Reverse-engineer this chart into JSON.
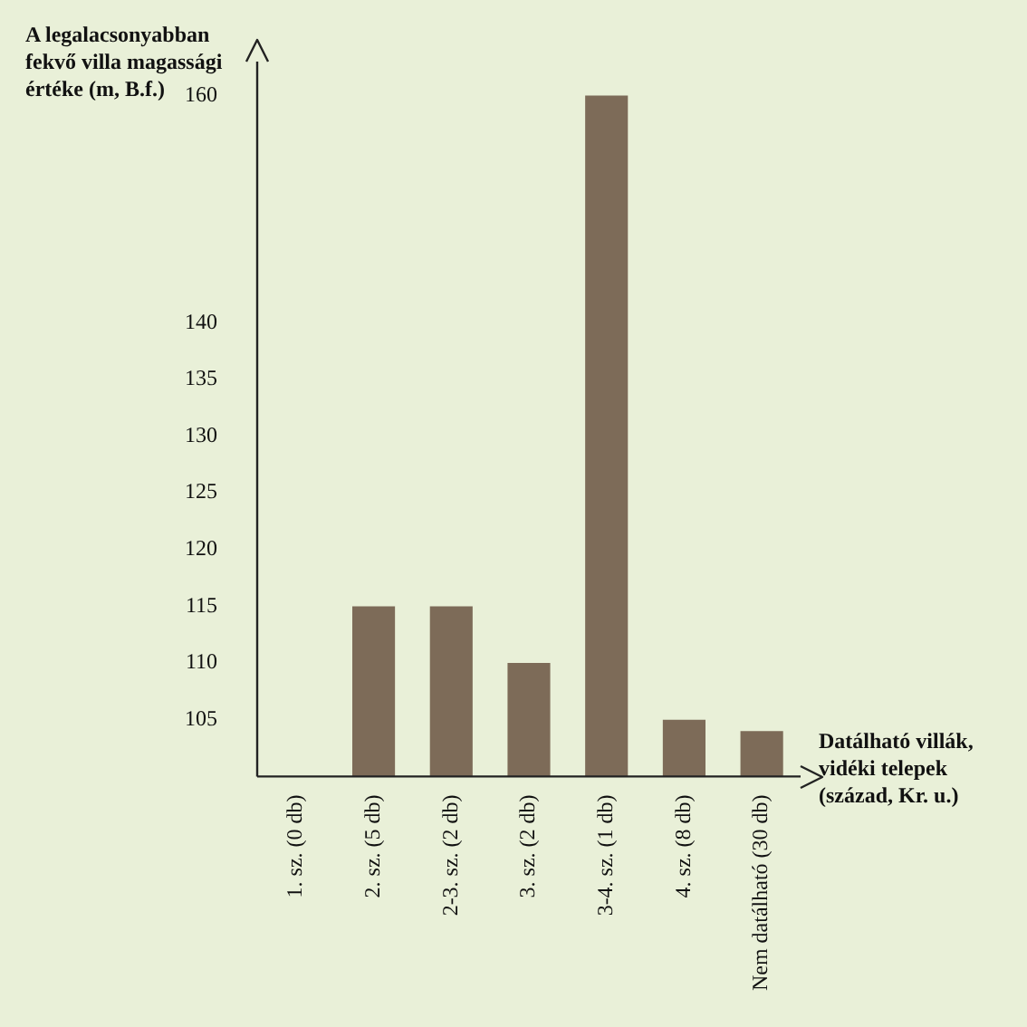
{
  "chart_data": {
    "type": "bar",
    "ylabel": "A legalacsonyabban fekvő villa magassági értéke (m, B.f.)",
    "xlabel": "Datálható villák, vidéki telepek (század, Kr. u.)",
    "categories": [
      "1. sz. (0 db)",
      "2. sz. (5 db)",
      "2-3. sz. (2 db)",
      "3. sz. (2 db)",
      "3-4. sz. (1 db)",
      "4. sz. (8 db)",
      "Nem datálható (30 db)"
    ],
    "values": [
      null,
      115,
      115,
      110,
      160,
      105,
      104
    ],
    "color": "#7d6b58",
    "ylim": [
      100,
      163
    ],
    "yticks": [
      105,
      110,
      115,
      120,
      125,
      130,
      135,
      140,
      160
    ],
    "grid": false,
    "legend": false
  }
}
